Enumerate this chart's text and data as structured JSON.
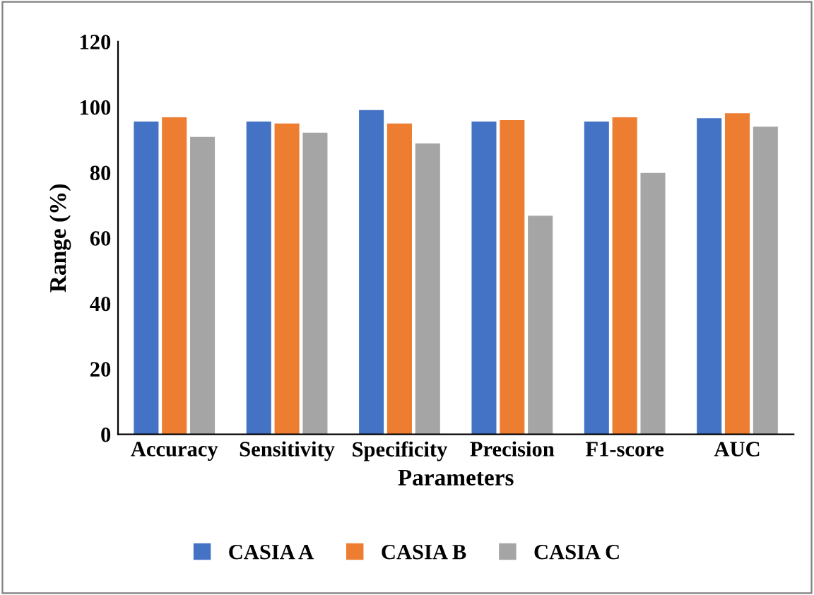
{
  "chart_data": {
    "type": "bar",
    "xlabel": "Parameters",
    "ylabel": "Range (%)",
    "categories": [
      "Accuracy",
      "Sensitivity",
      "Specificity",
      "Precision",
      "F1-score",
      "AUC"
    ],
    "series": [
      {
        "name": "CASIA A",
        "color": "#4472c4",
        "values": [
          95.6,
          95.6,
          99.1,
          95.6,
          95.6,
          96.6
        ]
      },
      {
        "name": "CASIA B",
        "color": "#ed7d31",
        "values": [
          96.9,
          95.0,
          95.0,
          96.0,
          96.9,
          98.1
        ]
      },
      {
        "name": "CASIA C",
        "color": "#a5a5a5",
        "values": [
          90.9,
          92.2,
          88.9,
          66.8,
          79.9,
          94.0
        ]
      }
    ],
    "ylim": [
      0,
      120
    ],
    "yticks": [
      0,
      20,
      40,
      60,
      80,
      100,
      120
    ],
    "grid": false,
    "legend": "bottom"
  }
}
